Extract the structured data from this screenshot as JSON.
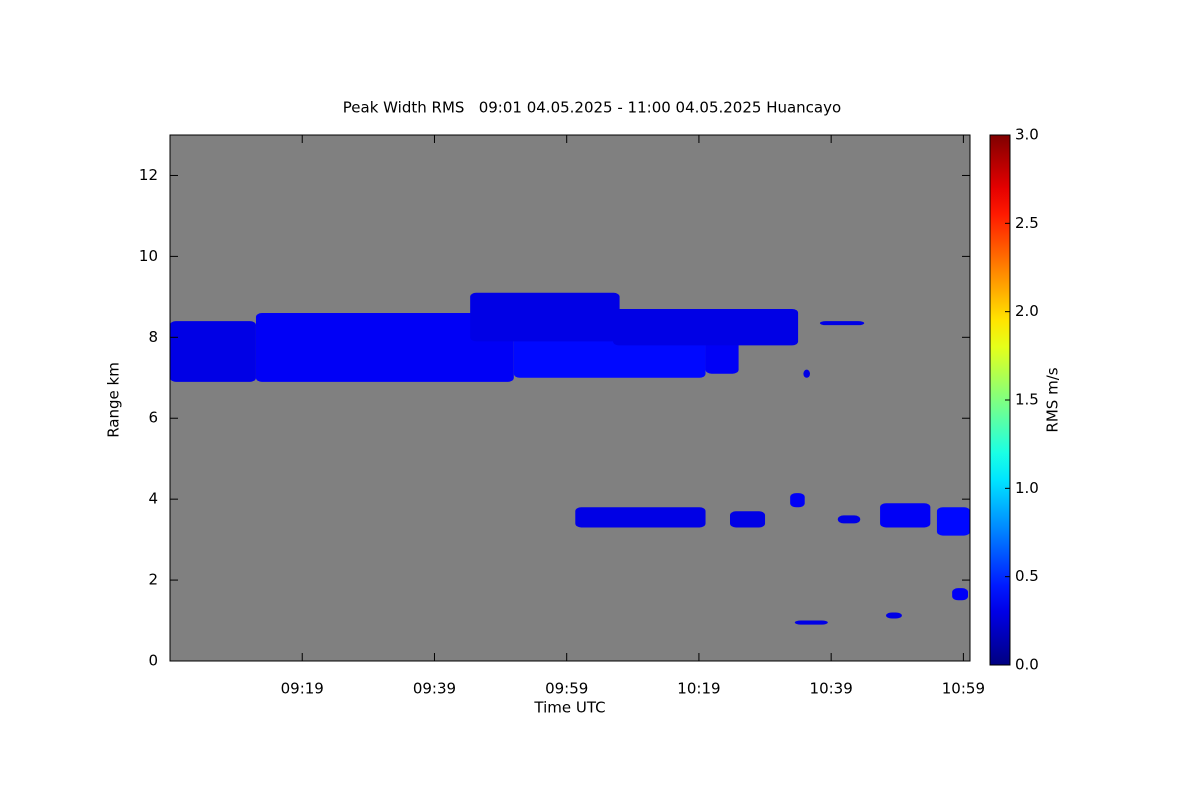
{
  "chart_data": {
    "type": "range-time",
    "title": "Peak Width RMS   09:01 04.05.2025 - 11:00 04.05.2025 Huancayo",
    "xlabel": "Time UTC",
    "ylabel": "Range km",
    "colorbar_label": "RMS m/s",
    "background": "#808080",
    "xlim": [
      539,
      660
    ],
    "xticks": [
      {
        "value": 559,
        "label": "09:19"
      },
      {
        "value": 579,
        "label": "09:39"
      },
      {
        "value": 599,
        "label": "09:59"
      },
      {
        "value": 619,
        "label": "10:19"
      },
      {
        "value": 639,
        "label": "10:39"
      },
      {
        "value": 659,
        "label": "10:59"
      }
    ],
    "ylim": [
      0,
      13
    ],
    "yticks": [
      0,
      2,
      4,
      6,
      8,
      10,
      12
    ],
    "clim": [
      0,
      3
    ],
    "cticks": [
      {
        "value": 0,
        "label": "0.0"
      },
      {
        "value": 0.5,
        "label": "0.5"
      },
      {
        "value": 1,
        "label": "1.0"
      },
      {
        "value": 1.5,
        "label": "1.5"
      },
      {
        "value": 2,
        "label": "2.0"
      },
      {
        "value": 2.5,
        "label": "2.5"
      },
      {
        "value": 3,
        "label": "3.0"
      }
    ],
    "echoes": [
      {
        "start": 539,
        "end": 552,
        "bottom": 6.9,
        "top": 8.4,
        "value": 0.3
      },
      {
        "start": 552,
        "end": 591,
        "bottom": 6.9,
        "top": 8.6,
        "value": 0.35
      },
      {
        "start": 591,
        "end": 620,
        "bottom": 7.0,
        "top": 8.3,
        "value": 0.4
      },
      {
        "start": 620,
        "end": 625,
        "bottom": 7.1,
        "top": 8.0,
        "value": 0.35
      },
      {
        "start": 584.4,
        "end": 607,
        "bottom": 7.9,
        "top": 9.1,
        "value": 0.3
      },
      {
        "start": 606,
        "end": 634,
        "bottom": 7.8,
        "top": 8.7,
        "value": 0.3
      },
      {
        "start": 634.8,
        "end": 635.8,
        "bottom": 7.0,
        "top": 7.2,
        "value": 0.3
      },
      {
        "start": 637.3,
        "end": 644,
        "bottom": 8.3,
        "top": 8.4,
        "value": 0.3
      },
      {
        "start": 600.3,
        "end": 620,
        "bottom": 3.3,
        "top": 3.8,
        "value": 0.3
      },
      {
        "start": 623.7,
        "end": 629,
        "bottom": 3.3,
        "top": 3.7,
        "value": 0.3
      },
      {
        "start": 632.8,
        "end": 635,
        "bottom": 3.8,
        "top": 4.15,
        "value": 0.35
      },
      {
        "start": 640,
        "end": 643.4,
        "bottom": 3.4,
        "top": 3.6,
        "value": 0.3
      },
      {
        "start": 646.4,
        "end": 654,
        "bottom": 3.3,
        "top": 3.9,
        "value": 0.35
      },
      {
        "start": 655,
        "end": 660,
        "bottom": 3.1,
        "top": 3.8,
        "value": 0.4
      },
      {
        "start": 633.5,
        "end": 638.5,
        "bottom": 0.9,
        "top": 1.0,
        "value": 0.3
      },
      {
        "start": 647.3,
        "end": 649.7,
        "bottom": 1.05,
        "top": 1.2,
        "value": 0.3
      },
      {
        "start": 657.3,
        "end": 659.7,
        "bottom": 1.5,
        "top": 1.8,
        "value": 0.35
      }
    ]
  }
}
